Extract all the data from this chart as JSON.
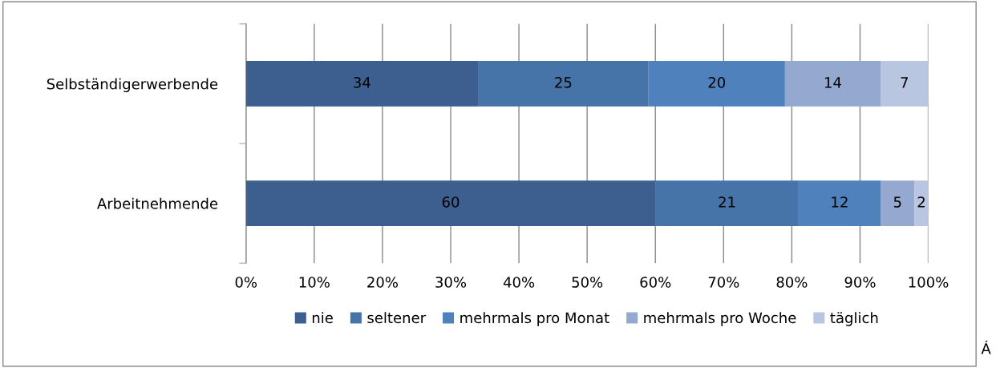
{
  "chart_data": {
    "type": "bar",
    "orientation": "horizontal",
    "stacked": true,
    "categories": [
      "Selbständigerwerbende",
      "Arbeitnehmende"
    ],
    "series": [
      {
        "name": "nie",
        "color": "#3c5f8f",
        "values": [
          34,
          60
        ]
      },
      {
        "name": "seltener",
        "color": "#4674a8",
        "values": [
          25,
          21
        ]
      },
      {
        "name": "mehrmals pro Monat",
        "color": "#4f81bd",
        "values": [
          20,
          12
        ]
      },
      {
        "name": "mehrmals pro Woche",
        "color": "#95a8d0",
        "values": [
          14,
          5
        ]
      },
      {
        "name": "täglich",
        "color": "#b9c6e1",
        "values": [
          7,
          2
        ]
      }
    ],
    "xlim": [
      0,
      100
    ],
    "xticks": [
      {
        "value": 0,
        "label": "0%"
      },
      {
        "value": 10,
        "label": "10%"
      },
      {
        "value": 20,
        "label": "20%"
      },
      {
        "value": 30,
        "label": "30%"
      },
      {
        "value": 40,
        "label": "40%"
      },
      {
        "value": 50,
        "label": "50%"
      },
      {
        "value": 60,
        "label": "60%"
      },
      {
        "value": 70,
        "label": "70%"
      },
      {
        "value": 80,
        "label": "80%"
      },
      {
        "value": 90,
        "label": "90%"
      },
      {
        "value": 100,
        "label": "100%"
      }
    ],
    "grid": "x",
    "legend": "bottom",
    "data_labels": true,
    "annotations": [
      "Á"
    ]
  }
}
